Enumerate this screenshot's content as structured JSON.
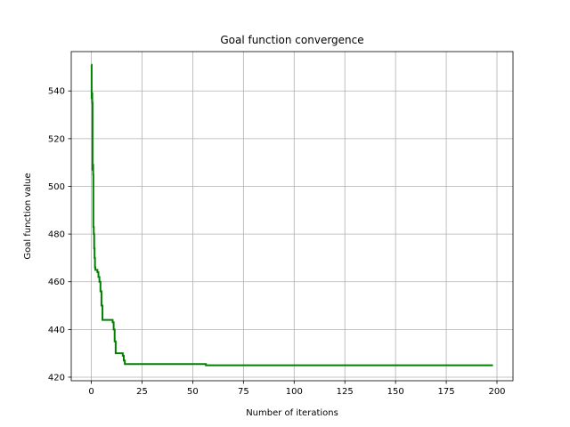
{
  "chart_data": {
    "type": "line",
    "title": "Goal function convergence",
    "xlabel": "Number of iterations",
    "ylabel": "Goal function value",
    "xlim": [
      -9.9,
      207.9
    ],
    "ylim": [
      418.5,
      556.5
    ],
    "xticks": [
      0,
      25,
      50,
      75,
      100,
      125,
      150,
      175,
      200
    ],
    "yticks": [
      420,
      440,
      460,
      480,
      500,
      520,
      540
    ],
    "grid": true,
    "step": "post",
    "series": [
      {
        "color": "#008000",
        "points": [
          [
            0,
            551
          ],
          [
            0.15,
            537
          ],
          [
            0.3,
            539
          ],
          [
            0.45,
            535
          ],
          [
            0.6,
            507
          ],
          [
            0.75,
            509
          ],
          [
            0.9,
            505
          ],
          [
            1.0,
            483
          ],
          [
            1.2,
            480
          ],
          [
            1.4,
            474
          ],
          [
            1.6,
            470
          ],
          [
            1.8,
            466
          ],
          [
            2,
            465
          ],
          [
            3,
            464
          ],
          [
            3.5,
            462
          ],
          [
            4,
            460
          ],
          [
            4.5,
            456
          ],
          [
            5,
            450
          ],
          [
            5.5,
            444
          ],
          [
            10,
            444
          ],
          [
            10.5,
            443
          ],
          [
            11,
            440
          ],
          [
            11.5,
            435
          ],
          [
            12,
            430
          ],
          [
            15,
            430
          ],
          [
            15.5,
            429
          ],
          [
            16,
            427
          ],
          [
            16.5,
            425.5
          ],
          [
            56,
            425.5
          ],
          [
            56.5,
            425
          ],
          [
            198,
            425
          ]
        ]
      }
    ]
  }
}
